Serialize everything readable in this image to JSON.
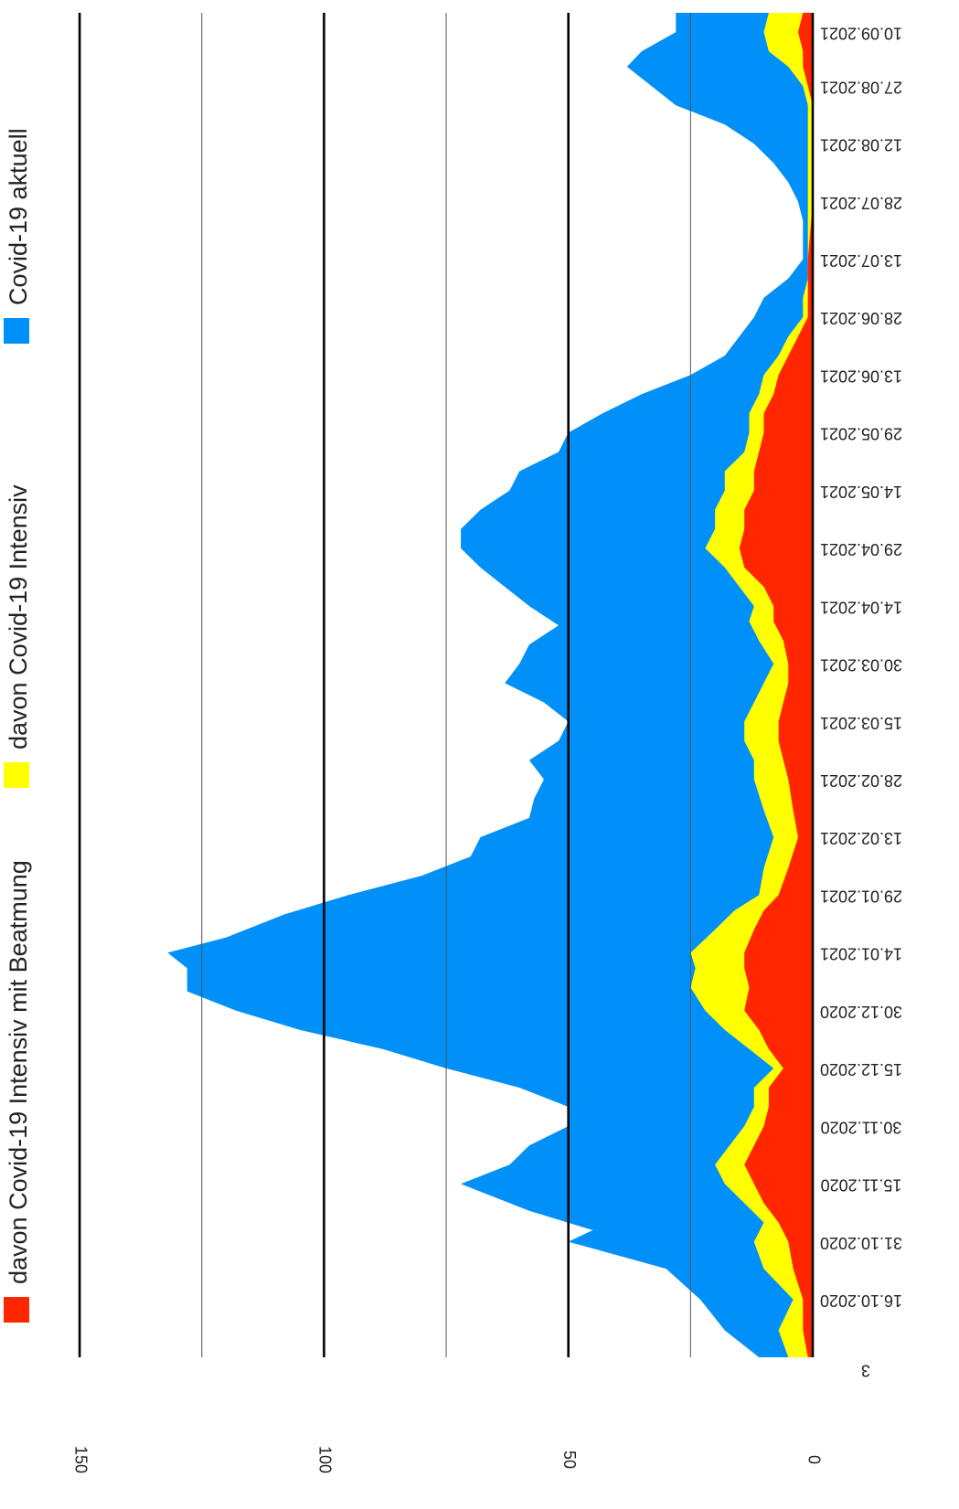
{
  "chart_data": {
    "type": "area",
    "stacked": false,
    "orientation": "rotated-90",
    "yticks": [
      0,
      50,
      100,
      150
    ],
    "ylim": [
      0,
      150
    ],
    "grid": true,
    "legend_position": "top",
    "x_tick_labels": [
      "16.10.2020",
      "31.10.2020",
      "15.11.2020",
      "30.11.2020",
      "15.12.2020",
      "30.12.2020",
      "14.01.2021",
      "29.01.2021",
      "13.02.2021",
      "28.02.2021",
      "15.03.2021",
      "30.03.2021",
      "14.04.2021",
      "29.04.2021",
      "14.05.2021",
      "29.05.2021",
      "13.06.2021",
      "28.06.2021",
      "13.07.2021",
      "28.07.2021",
      "12.08.2021",
      "27.08.2021",
      "10.09.2021"
    ],
    "x_tick_labels_partial": [
      "3"
    ],
    "x_start_label": "01.10.2020",
    "x_end_label": "15.09.2021",
    "series": [
      {
        "name": "Covid-19 aktuell",
        "color": "#0090f8",
        "x": [
          "01.10.2020",
          "08.10.2020",
          "16.10.2020",
          "24.10.2020",
          "31.10.2020",
          "03.11.2020",
          "08.11.2020",
          "15.11.2020",
          "20.11.2020",
          "25.11.2020",
          "30.11.2020",
          "05.12.2020",
          "10.12.2020",
          "15.12.2020",
          "20.12.2020",
          "25.12.2020",
          "30.12.2020",
          "04.01.2021",
          "10.01.2021",
          "14.01.2021",
          "18.01.2021",
          "24.01.2021",
          "29.01.2021",
          "03.02.2021",
          "08.02.2021",
          "13.02.2021",
          "18.02.2021",
          "23.02.2021",
          "28.02.2021",
          "05.03.2021",
          "10.03.2021",
          "15.03.2021",
          "20.03.2021",
          "25.03.2021",
          "30.03.2021",
          "04.04.2021",
          "09.04.2021",
          "14.04.2021",
          "19.04.2021",
          "24.04.2021",
          "29.04.2021",
          "04.05.2021",
          "09.05.2021",
          "14.05.2021",
          "19.05.2021",
          "24.05.2021",
          "29.05.2021",
          "03.06.2021",
          "08.06.2021",
          "13.06.2021",
          "18.06.2021",
          "23.06.2021",
          "28.06.2021",
          "03.07.2021",
          "08.07.2021",
          "13.07.2021",
          "18.07.2021",
          "23.07.2021",
          "28.07.2021",
          "02.08.2021",
          "07.08.2021",
          "12.08.2021",
          "17.08.2021",
          "22.08.2021",
          "27.08.2021",
          "01.09.2021",
          "05.09.2021",
          "10.09.2021",
          "15.09.2021"
        ],
        "values": [
          11,
          18,
          23,
          30,
          50,
          45,
          58,
          72,
          62,
          58,
          50,
          50,
          60,
          75,
          88,
          105,
          118,
          128,
          128,
          132,
          120,
          108,
          95,
          80,
          70,
          68,
          58,
          57,
          55,
          58,
          52,
          50,
          55,
          63,
          60,
          58,
          52,
          58,
          63,
          68,
          72,
          72,
          68,
          62,
          60,
          52,
          50,
          43,
          35,
          25,
          18,
          15,
          12,
          10,
          5,
          2,
          2,
          2,
          3,
          5,
          8,
          12,
          18,
          28,
          33,
          38,
          35,
          28,
          28
        ]
      },
      {
        "name": "davon Covid-19 Intensiv",
        "color": "#ffff00",
        "x": [
          "01.10.2020",
          "08.10.2020",
          "16.10.2020",
          "24.10.2020",
          "31.10.2020",
          "05.11.2020",
          "10.11.2020",
          "15.11.2020",
          "20.11.2020",
          "25.11.2020",
          "30.11.2020",
          "05.12.2020",
          "10.12.2020",
          "15.12.2020",
          "20.12.2020",
          "25.12.2020",
          "30.12.2020",
          "05.01.2021",
          "10.01.2021",
          "14.01.2021",
          "20.01.2021",
          "25.01.2021",
          "29.01.2021",
          "05.02.2021",
          "13.02.2021",
          "20.02.2021",
          "28.02.2021",
          "05.03.2021",
          "10.03.2021",
          "15.03.2021",
          "20.03.2021",
          "25.03.2021",
          "30.03.2021",
          "05.04.2021",
          "10.04.2021",
          "14.04.2021",
          "19.04.2021",
          "24.04.2021",
          "29.04.2021",
          "04.05.2021",
          "09.05.2021",
          "14.05.2021",
          "19.05.2021",
          "24.05.2021",
          "29.05.2021",
          "03.06.2021",
          "08.06.2021",
          "13.06.2021",
          "18.06.2021",
          "23.06.2021",
          "28.06.2021",
          "03.07.2021",
          "08.07.2021",
          "13.07.2021",
          "28.07.2021",
          "05.08.2021",
          "12.08.2021",
          "17.08.2021",
          "22.08.2021",
          "27.08.2021",
          "01.09.2021",
          "05.09.2021",
          "10.09.2021",
          "15.09.2021"
        ],
        "values": [
          5,
          7,
          4,
          10,
          12,
          10,
          14,
          18,
          20,
          17,
          14,
          12,
          12,
          8,
          13,
          18,
          22,
          25,
          24,
          25,
          20,
          16,
          11,
          10,
          8,
          10,
          12,
          12,
          14,
          14,
          12,
          10,
          8,
          11,
          13,
          12,
          15,
          18,
          22,
          20,
          20,
          18,
          18,
          14,
          13,
          13,
          11,
          10,
          7,
          5,
          2,
          2,
          1,
          1,
          1,
          1,
          1,
          1,
          1,
          2,
          5,
          9,
          10,
          9
        ]
      },
      {
        "name": "davon Covid-19 Intensiv mit Beatmung",
        "color": "#ff2600",
        "x": [
          "01.10.2020",
          "08.10.2020",
          "16.10.2020",
          "24.10.2020",
          "31.10.2020",
          "05.11.2020",
          "10.11.2020",
          "15.11.2020",
          "20.11.2020",
          "25.11.2020",
          "30.11.2020",
          "05.12.2020",
          "10.12.2020",
          "15.12.2020",
          "20.12.2020",
          "25.12.2020",
          "30.12.2020",
          "05.01.2021",
          "10.01.2021",
          "14.01.2021",
          "20.01.2021",
          "25.01.2021",
          "29.01.2021",
          "05.02.2021",
          "13.02.2021",
          "20.02.2021",
          "28.02.2021",
          "05.03.2021",
          "10.03.2021",
          "15.03.2021",
          "20.03.2021",
          "25.03.2021",
          "30.03.2021",
          "05.04.2021",
          "10.04.2021",
          "14.04.2021",
          "19.04.2021",
          "24.04.2021",
          "29.04.2021",
          "04.05.2021",
          "09.05.2021",
          "14.05.2021",
          "19.05.2021",
          "24.05.2021",
          "29.05.2021",
          "03.06.2021",
          "08.06.2021",
          "13.06.2021",
          "18.06.2021",
          "23.06.2021",
          "28.06.2021",
          "03.07.2021",
          "08.07.2021",
          "13.07.2021",
          "28.07.2021",
          "05.08.2021",
          "12.08.2021",
          "17.08.2021",
          "22.08.2021",
          "27.08.2021",
          "01.09.2021",
          "05.09.2021",
          "10.09.2021",
          "15.09.2021"
        ],
        "values": [
          1,
          2,
          2,
          4,
          5,
          7,
          10,
          12,
          14,
          12,
          10,
          9,
          9,
          6,
          9,
          11,
          14,
          13,
          14,
          14,
          12,
          10,
          7,
          5,
          3,
          4,
          5,
          6,
          7,
          7,
          6,
          5,
          5,
          6,
          8,
          8,
          10,
          14,
          15,
          14,
          14,
          12,
          12,
          11,
          10,
          10,
          8,
          7,
          5,
          3,
          1,
          1,
          1,
          1,
          0,
          0,
          0,
          0,
          0,
          1,
          2,
          2,
          3,
          2
        ]
      }
    ]
  }
}
